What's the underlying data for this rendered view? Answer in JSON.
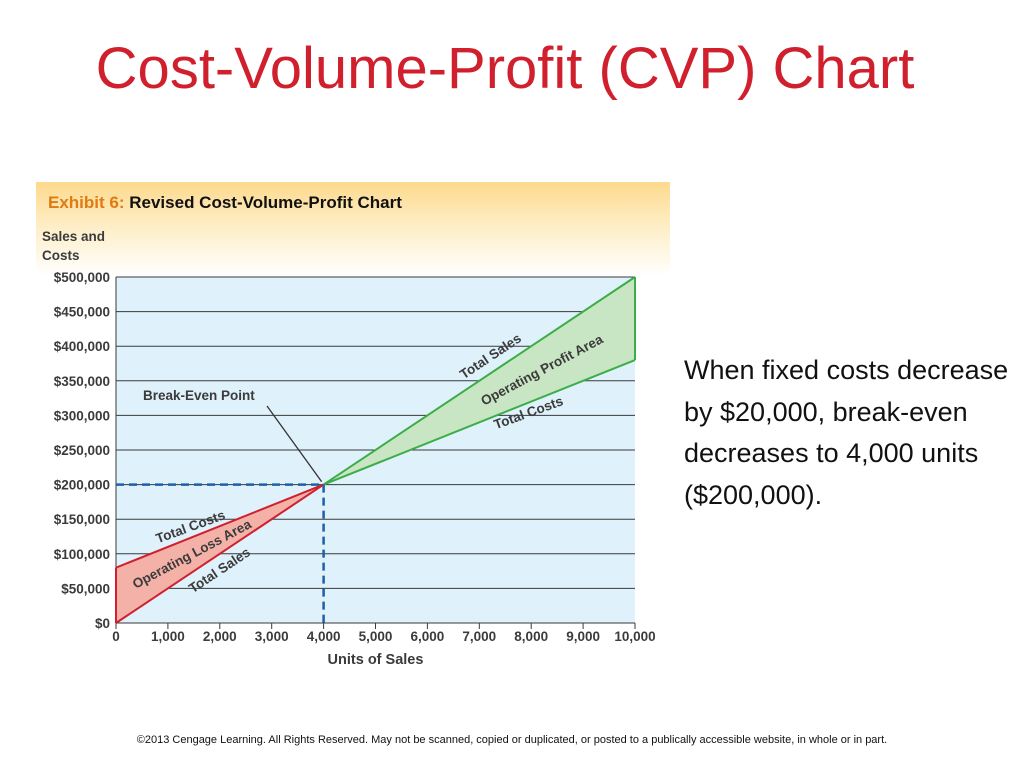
{
  "slide": {
    "title": "Cost-Volume-Profit (CVP) Chart",
    "note": "When fixed costs decrease by $20,000, break-even decreases to 4,000 units ($200,000).",
    "copyright": "©2013 Cengage Learning. All Rights Reserved. May not be scanned, copied or duplicated, or posted to a publically accessible website, in whole or in part."
  },
  "exhibit": {
    "number_label": "Exhibit 6:",
    "title": "Revised Cost-Volume-Profit Chart"
  },
  "colors": {
    "title": "#d0202d",
    "plot_background": "#dff1fb",
    "profit_fill": "#c8e6c3",
    "profit_line": "#3dad48",
    "loss_fill": "#f4b1a8",
    "loss_line": "#d0202d",
    "guide_line": "#1e5fa8"
  },
  "chart_data": {
    "type": "line",
    "title": "Revised Cost-Volume-Profit Chart",
    "ylabel": "Sales and Costs",
    "xlabel": "Units of Sales",
    "xlim": [
      0,
      10000
    ],
    "ylim": [
      0,
      500000
    ],
    "grid": true,
    "x_ticks": [
      0,
      1000,
      2000,
      3000,
      4000,
      5000,
      6000,
      7000,
      8000,
      9000,
      10000
    ],
    "x_tick_labels": [
      "0",
      "1,000",
      "2,000",
      "3,000",
      "4,000",
      "5,000",
      "6,000",
      "7,000",
      "8,000",
      "9,000",
      "10,000"
    ],
    "y_ticks": [
      0,
      50000,
      100000,
      150000,
      200000,
      250000,
      300000,
      350000,
      400000,
      450000,
      500000
    ],
    "y_tick_labels": [
      "$0",
      "$50,000",
      "$100,000",
      "$150,000",
      "$200,000",
      "$250,000",
      "$300,000",
      "$350,000",
      "$400,000",
      "$450,000",
      "$500,000"
    ],
    "series": [
      {
        "name": "Total Sales",
        "x": [
          0,
          10000
        ],
        "y": [
          0,
          500000
        ]
      },
      {
        "name": "Total Costs",
        "x": [
          0,
          10000
        ],
        "y": [
          80000,
          380000
        ]
      }
    ],
    "break_even": {
      "label": "Break-Even Point",
      "units": 4000,
      "sales": 200000
    },
    "areas": {
      "profit": "Operating Profit Area",
      "loss": "Operating Loss Area"
    },
    "line_labels": {
      "upper_sales": "Total Sales",
      "upper_costs": "Total Costs",
      "lower_sales": "Total Sales",
      "lower_costs": "Total Costs"
    }
  }
}
